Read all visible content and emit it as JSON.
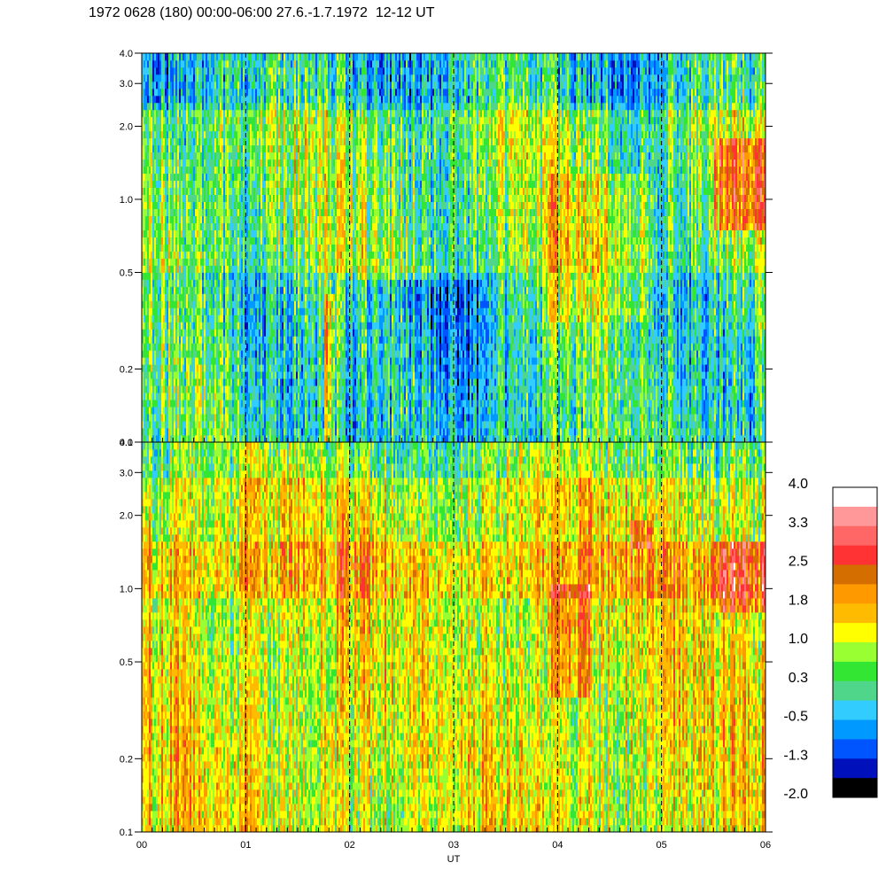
{
  "title": "1972 0628 (180) 00:00-06:00 27.6.-1.7.1972  12-12 UT",
  "chart_data": [
    {
      "type": "heatmap",
      "panel": "upper",
      "x_range": [
        0,
        6
      ],
      "y_range": [
        0.1,
        4.0
      ],
      "y_scale": "log",
      "y_ticks": [
        "0.1",
        "0.2",
        "0.5",
        "1.0",
        "2.0",
        "3.0",
        "4.0"
      ],
      "y_tick_values": [
        0.1,
        0.2,
        0.5,
        1.0,
        2.0,
        3.0,
        4.0
      ],
      "x_ticks": [
        "00",
        "01",
        "02",
        "03",
        "04",
        "05",
        "06"
      ],
      "x_tick_values": [
        0,
        1,
        2,
        3,
        4,
        5,
        6
      ],
      "dashed_lines_x": [
        1,
        2,
        3,
        4,
        5
      ],
      "xlabel": "",
      "dominant_levels": "0.3 to 1.8 (green-yellow), higher near 5.6-6.0 at 0.7-1.6"
    },
    {
      "type": "heatmap",
      "panel": "lower",
      "x_range": [
        0,
        6
      ],
      "y_range": [
        0.1,
        4.0
      ],
      "y_scale": "log",
      "y_ticks": [
        "0.1",
        "0.2",
        "0.5",
        "1.0",
        "2.0",
        "3.0",
        "4.0"
      ],
      "y_tick_values": [
        0.1,
        0.2,
        0.5,
        1.0,
        2.0,
        3.0,
        4.0
      ],
      "x_ticks": [
        "00",
        "01",
        "02",
        "03",
        "04",
        "05",
        "06"
      ],
      "x_tick_values": [
        0,
        1,
        2,
        3,
        4,
        5,
        6
      ],
      "dashed_lines_x": [
        1,
        2,
        3,
        4,
        5
      ],
      "xlabel": "UT",
      "dominant_levels": "1.0 to 2.5 (yellow-orange), up to 3.3 near 4.1 and 5.7"
    }
  ],
  "colorbar": {
    "colors": [
      "#ffffff",
      "#ff9999",
      "#ff6666",
      "#ff3333",
      "#d46e00",
      "#ff9900",
      "#ffbb00",
      "#ffff00",
      "#99ff33",
      "#33e633",
      "#4fd68a",
      "#33ccff",
      "#0099ff",
      "#0055ff",
      "#0011bb",
      "#000000"
    ],
    "labels": [
      "4.0",
      "3.3",
      "2.5",
      "1.8",
      "1.0",
      "0.3",
      "-0.5",
      "-1.3",
      "-2.0"
    ]
  }
}
